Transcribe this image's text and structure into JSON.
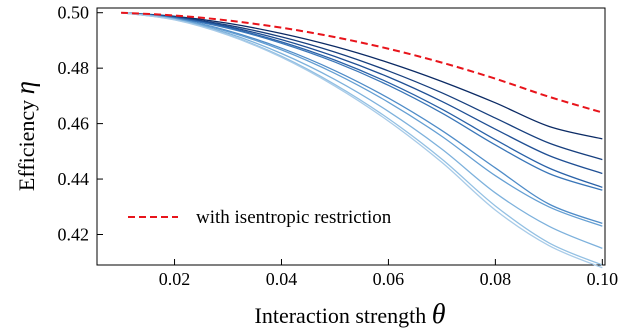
{
  "chart_data": {
    "type": "line",
    "xlabel": "Interaction strength",
    "xlabel_symbol": "θ",
    "ylabel": "Efficiency",
    "ylabel_symbol": "η",
    "xlim": [
      0.0055,
      0.1005
    ],
    "ylim": [
      0.409,
      0.5017
    ],
    "xticks": [
      0.02,
      0.04,
      0.06,
      0.08,
      0.1
    ],
    "xtick_labels": [
      "0.02",
      "0.04",
      "0.06",
      "0.08",
      "0.10"
    ],
    "yticks": [
      0.42,
      0.44,
      0.46,
      0.48,
      0.5
    ],
    "ytick_labels": [
      "0.42",
      "0.44",
      "0.46",
      "0.48",
      "0.50"
    ],
    "grid": false,
    "legend": {
      "position": "lower-left",
      "entries": [
        "with isentropic restriction"
      ]
    },
    "colors": {
      "restricted": "#e8141b",
      "palette_dark": "#0b2a64",
      "palette_light": "#a8cbe8"
    },
    "x": [
      0.01,
      0.02,
      0.03,
      0.04,
      0.05,
      0.06,
      0.07,
      0.08,
      0.09,
      0.1
    ],
    "series": [
      {
        "name": "with isentropic restriction",
        "style": "dashed",
        "color": "#e8141b",
        "values": [
          0.5,
          0.499,
          0.4972,
          0.4946,
          0.4912,
          0.487,
          0.482,
          0.4762,
          0.4697,
          0.464
        ]
      },
      {
        "style": "solid",
        "color": "#0b2a64",
        "values": [
          0.5,
          0.4987,
          0.4962,
          0.4925,
          0.4878,
          0.482,
          0.4752,
          0.4675,
          0.459,
          0.4545
        ]
      },
      {
        "style": "solid",
        "color": "#173f7e",
        "values": [
          0.5,
          0.4985,
          0.4955,
          0.4913,
          0.4858,
          0.479,
          0.4711,
          0.462,
          0.453,
          0.447
        ]
      },
      {
        "style": "solid",
        "color": "#1f4f94",
        "values": [
          0.5,
          0.4983,
          0.495,
          0.4903,
          0.4842,
          0.4768,
          0.468,
          0.458,
          0.4485,
          0.442
        ]
      },
      {
        "style": "solid",
        "color": "#2a62a8",
        "values": [
          0.5,
          0.4982,
          0.4946,
          0.4895,
          0.4829,
          0.4748,
          0.4652,
          0.4542,
          0.444,
          0.437
        ]
      },
      {
        "style": "solid",
        "color": "#3a76b8",
        "values": [
          0.5,
          0.4981,
          0.4944,
          0.489,
          0.4822,
          0.4738,
          0.4638,
          0.4523,
          0.442,
          0.436
        ]
      },
      {
        "style": "solid",
        "color": "#4f8cc8",
        "values": [
          0.5,
          0.4979,
          0.4935,
          0.4872,
          0.4791,
          0.4692,
          0.4575,
          0.444,
          0.431,
          0.424
        ]
      },
      {
        "style": "solid",
        "color": "#659fd3",
        "values": [
          0.5,
          0.4978,
          0.4932,
          0.4866,
          0.4781,
          0.4677,
          0.4554,
          0.4412,
          0.43,
          0.423
        ]
      },
      {
        "style": "solid",
        "color": "#7db1dc",
        "values": [
          0.5,
          0.4976,
          0.4926,
          0.4853,
          0.4759,
          0.4644,
          0.4508,
          0.435,
          0.423,
          0.415
        ]
      },
      {
        "style": "solid",
        "color": "#93c0e3",
        "values": [
          0.5,
          0.4975,
          0.4921,
          0.4843,
          0.4741,
          0.4618,
          0.4472,
          0.4303,
          0.417,
          0.409
        ]
      },
      {
        "style": "solid",
        "color": "#a8cbe8",
        "values": [
          0.5,
          0.4974,
          0.4919,
          0.4839,
          0.4735,
          0.4609,
          0.446,
          0.4288,
          0.416,
          0.408
        ]
      }
    ]
  }
}
